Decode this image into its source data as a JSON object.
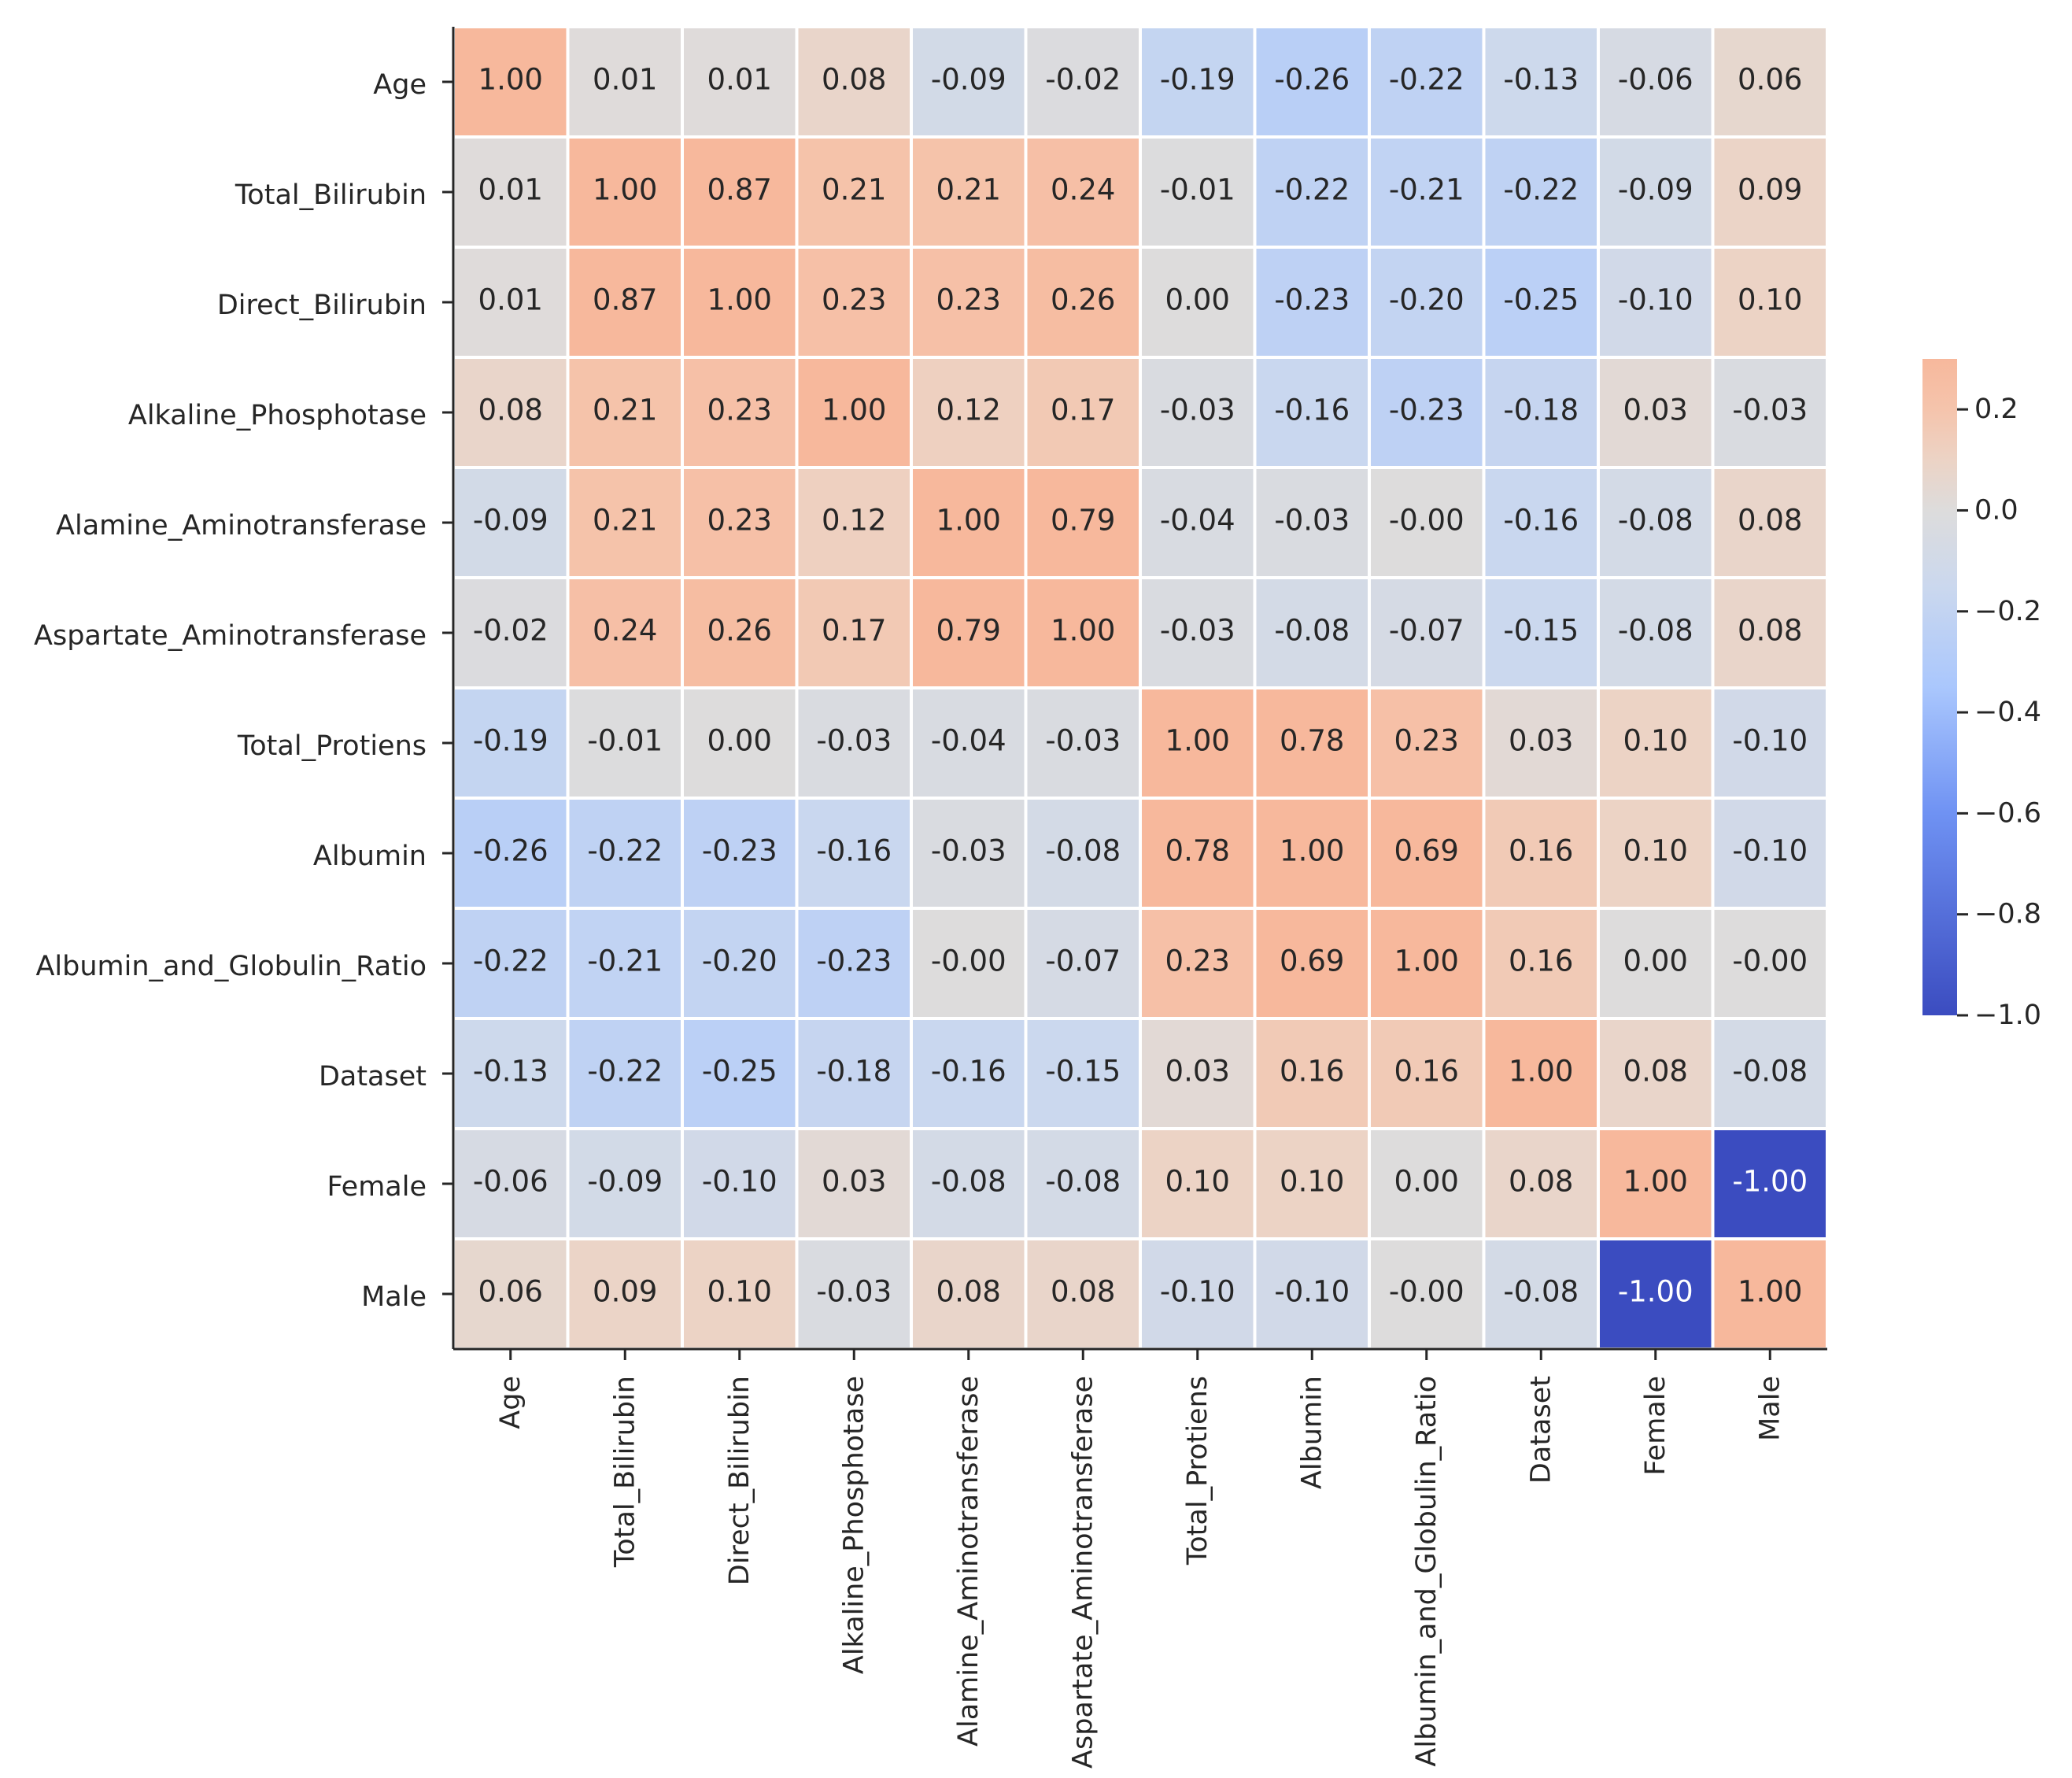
{
  "chart_data": {
    "type": "heatmap",
    "title": "",
    "xlabel": "",
    "ylabel": "",
    "categories": [
      "Age",
      "Total_Bilirubin",
      "Direct_Bilirubin",
      "Alkaline_Phosphotase",
      "Alamine_Aminotransferase",
      "Aspartate_Aminotransferase",
      "Total_Protiens",
      "Albumin",
      "Albumin_and_Globulin_Ratio",
      "Dataset",
      "Female",
      "Male"
    ],
    "matrix": [
      [
        "1.00",
        "0.01",
        "0.01",
        "0.08",
        "-0.09",
        "-0.02",
        "-0.19",
        "-0.26",
        "-0.22",
        "-0.13",
        "-0.06",
        "0.06"
      ],
      [
        "0.01",
        "1.00",
        "0.87",
        "0.21",
        "0.21",
        "0.24",
        "-0.01",
        "-0.22",
        "-0.21",
        "-0.22",
        "-0.09",
        "0.09"
      ],
      [
        "0.01",
        "0.87",
        "1.00",
        "0.23",
        "0.23",
        "0.26",
        "0.00",
        "-0.23",
        "-0.20",
        "-0.25",
        "-0.10",
        "0.10"
      ],
      [
        "0.08",
        "0.21",
        "0.23",
        "1.00",
        "0.12",
        "0.17",
        "-0.03",
        "-0.16",
        "-0.23",
        "-0.18",
        "0.03",
        "-0.03"
      ],
      [
        "-0.09",
        "0.21",
        "0.23",
        "0.12",
        "1.00",
        "0.79",
        "-0.04",
        "-0.03",
        "-0.00",
        "-0.16",
        "-0.08",
        "0.08"
      ],
      [
        "-0.02",
        "0.24",
        "0.26",
        "0.17",
        "0.79",
        "1.00",
        "-0.03",
        "-0.08",
        "-0.07",
        "-0.15",
        "-0.08",
        "0.08"
      ],
      [
        "-0.19",
        "-0.01",
        "0.00",
        "-0.03",
        "-0.04",
        "-0.03",
        "1.00",
        "0.78",
        "0.23",
        "0.03",
        "0.10",
        "-0.10"
      ],
      [
        "-0.26",
        "-0.22",
        "-0.23",
        "-0.16",
        "-0.03",
        "-0.08",
        "0.78",
        "1.00",
        "0.69",
        "0.16",
        "0.10",
        "-0.10"
      ],
      [
        "-0.22",
        "-0.21",
        "-0.20",
        "-0.23",
        "-0.00",
        "-0.07",
        "0.23",
        "0.69",
        "1.00",
        "0.16",
        "0.00",
        "-0.00"
      ],
      [
        "-0.13",
        "-0.22",
        "-0.25",
        "-0.18",
        "-0.16",
        "-0.15",
        "0.03",
        "0.16",
        "0.16",
        "1.00",
        "0.08",
        "-0.08"
      ],
      [
        "-0.06",
        "-0.09",
        "-0.10",
        "0.03",
        "-0.08",
        "-0.08",
        "0.10",
        "0.10",
        "0.00",
        "0.08",
        "1.00",
        "-1.00"
      ],
      [
        "0.06",
        "0.09",
        "0.10",
        "-0.03",
        "0.08",
        "0.08",
        "-0.10",
        "-0.10",
        "-0.00",
        "-0.08",
        "-1.00",
        "1.00"
      ]
    ],
    "colorbar": {
      "vmin": -1.0,
      "vmax": 0.3,
      "ticks": [
        0.2,
        0.0,
        -0.2,
        -0.4,
        -0.6,
        -0.8,
        -1.0
      ],
      "tick_labels": [
        "0.2",
        "0.0",
        "−0.2",
        "−0.4",
        "−0.6",
        "−0.8",
        "−1.0"
      ],
      "placement": "right"
    },
    "colormap": {
      "name": "coolwarm",
      "stops": [
        {
          "v": -1.0,
          "color": "#3b4cc0"
        },
        {
          "v": -0.6,
          "color": "#6f92f3"
        },
        {
          "v": -0.35,
          "color": "#aac7fd"
        },
        {
          "v": -0.15,
          "color": "#cbd8ee"
        },
        {
          "v": 0.0,
          "color": "#dddcdc"
        },
        {
          "v": 0.1,
          "color": "#ecd3c5"
        },
        {
          "v": 0.2,
          "color": "#f5c4ac"
        },
        {
          "v": 0.3,
          "color": "#f7b89c"
        }
      ]
    },
    "grid": true
  }
}
